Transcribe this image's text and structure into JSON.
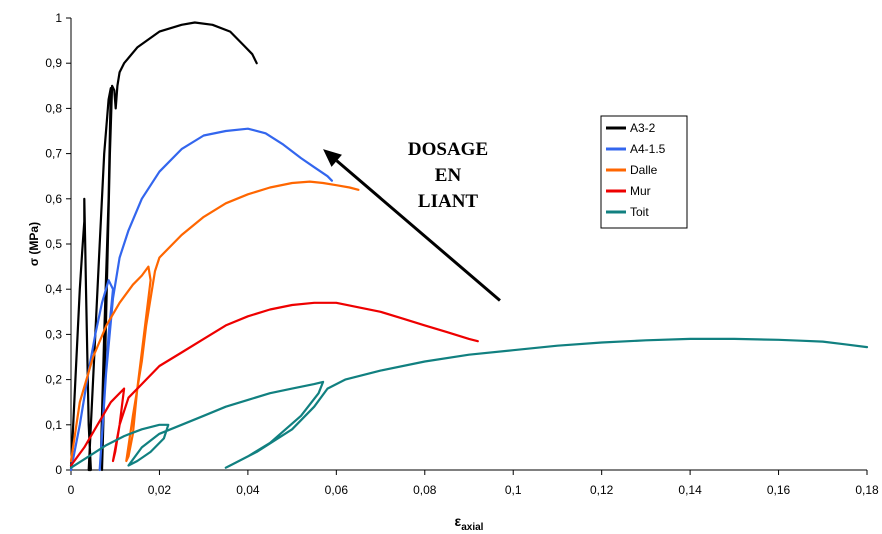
{
  "chart_data": {
    "type": "line",
    "title": "",
    "xlabel": "ε",
    "xlabel_sub": "axial",
    "ylabel": "σ (MPa)",
    "xlim": [
      0,
      0.18
    ],
    "ylim": [
      0,
      1
    ],
    "x_ticks": [
      0,
      0.02,
      0.04,
      0.06,
      0.08,
      0.1,
      0.12,
      0.14,
      0.16,
      0.18
    ],
    "y_ticks": [
      0,
      0.1,
      0.2,
      0.3,
      0.4,
      0.5,
      0.6,
      0.7,
      0.8,
      0.9,
      1
    ],
    "x_tick_labels": [
      "0",
      "0,02",
      "0,04",
      "0,06",
      "0,08",
      "0,1",
      "0,12",
      "0,14",
      "0,16",
      "0,18"
    ],
    "y_tick_labels": [
      "0",
      "0,1",
      "0,2",
      "0,3",
      "0,4",
      "0,5",
      "0,6",
      "0,7",
      "0,8",
      "0,9",
      "1"
    ],
    "grid": false,
    "legend_position": "top-right",
    "annotation": {
      "lines": [
        "DOSAGE",
        "EN",
        "LIANT"
      ],
      "arrow_from": [
        0.097,
        0.375
      ],
      "arrow_to": [
        0.057,
        0.71
      ]
    },
    "series": [
      {
        "name": "A3-2",
        "color": "#000000",
        "x": [
          0,
          0.0005,
          0.001,
          0.0015,
          0.002,
          0.0025,
          0.003,
          0.003,
          0.0032,
          0.0034,
          0.0036,
          0.0038,
          0.004,
          0.0045,
          0.004,
          0.0045,
          0.0055,
          0.0065,
          0.0075,
          0.0085,
          0.009,
          0.0085,
          0.0075,
          0.0068,
          0.007,
          0.0076,
          0.0082,
          0.0088,
          0.0093,
          0.0098,
          0.0101,
          0.0105,
          0.011,
          0.012,
          0.015,
          0.02,
          0.025,
          0.028,
          0.032,
          0.036,
          0.039,
          0.041,
          0.042
        ],
        "y": [
          0,
          0.1,
          0.2,
          0.3,
          0.4,
          0.48,
          0.55,
          0.6,
          0.5,
          0.4,
          0.3,
          0.2,
          0.1,
          0,
          0,
          0.1,
          0.3,
          0.5,
          0.7,
          0.82,
          0.845,
          0.6,
          0.3,
          0.05,
          0,
          0.2,
          0.45,
          0.7,
          0.85,
          0.84,
          0.8,
          0.85,
          0.88,
          0.9,
          0.935,
          0.97,
          0.985,
          0.99,
          0.985,
          0.97,
          0.94,
          0.92,
          0.9
        ]
      },
      {
        "name": "A4-1.5",
        "color": "#3366ee",
        "x": [
          0,
          0.002,
          0.004,
          0.0055,
          0.007,
          0.0085,
          0.0095,
          0.0085,
          0.0075,
          0.0065,
          0.0065,
          0.0078,
          0.0095,
          0.011,
          0.013,
          0.016,
          0.02,
          0.025,
          0.03,
          0.035,
          0.04,
          0.044,
          0.048,
          0.052,
          0.055,
          0.058,
          0.059
        ],
        "y": [
          0,
          0.1,
          0.22,
          0.3,
          0.37,
          0.42,
          0.4,
          0.3,
          0.15,
          0,
          0,
          0.2,
          0.38,
          0.47,
          0.53,
          0.6,
          0.66,
          0.71,
          0.74,
          0.75,
          0.755,
          0.745,
          0.72,
          0.69,
          0.67,
          0.65,
          0.64
        ]
      },
      {
        "name": "Dalle",
        "color": "#ff6600",
        "x": [
          0,
          0.002,
          0.005,
          0.008,
          0.011,
          0.014,
          0.016,
          0.0175,
          0.018,
          0.0165,
          0.015,
          0.014,
          0.013,
          0.0125,
          0.0125,
          0.014,
          0.016,
          0.017,
          0.018,
          0.019,
          0.02,
          0.025,
          0.03,
          0.035,
          0.04,
          0.045,
          0.05,
          0.054,
          0.057,
          0.06,
          0.063,
          0.065
        ],
        "y": [
          0.02,
          0.15,
          0.25,
          0.32,
          0.37,
          0.41,
          0.43,
          0.45,
          0.42,
          0.3,
          0.18,
          0.08,
          0.03,
          0.02,
          0.02,
          0.12,
          0.24,
          0.32,
          0.38,
          0.44,
          0.47,
          0.52,
          0.56,
          0.59,
          0.61,
          0.625,
          0.635,
          0.638,
          0.635,
          0.63,
          0.625,
          0.62
        ]
      },
      {
        "name": "Mur",
        "color": "#ee0000",
        "x": [
          0,
          0.003,
          0.006,
          0.009,
          0.012,
          0.011,
          0.01,
          0.0095,
          0.0095,
          0.011,
          0.013,
          0.016,
          0.02,
          0.025,
          0.03,
          0.035,
          0.04,
          0.045,
          0.05,
          0.055,
          0.06,
          0.065,
          0.07,
          0.075,
          0.08,
          0.085,
          0.09,
          0.092
        ],
        "y": [
          0.01,
          0.05,
          0.1,
          0.15,
          0.18,
          0.1,
          0.04,
          0.02,
          0.02,
          0.1,
          0.16,
          0.19,
          0.23,
          0.26,
          0.29,
          0.32,
          0.34,
          0.355,
          0.365,
          0.37,
          0.37,
          0.36,
          0.35,
          0.335,
          0.32,
          0.305,
          0.29,
          0.285
        ]
      },
      {
        "name": "Toit",
        "color": "#118080",
        "x": [
          0,
          0.004,
          0.008,
          0.012,
          0.016,
          0.02,
          0.022,
          0.021,
          0.018,
          0.015,
          0.013,
          0.013,
          0.016,
          0.02,
          0.025,
          0.03,
          0.035,
          0.04,
          0.045,
          0.05,
          0.055,
          0.057,
          0.056,
          0.052,
          0.045,
          0.04,
          0.036,
          0.035,
          0.035,
          0.042,
          0.05,
          0.055,
          0.058,
          0.062,
          0.066,
          0.07,
          0.08,
          0.09,
          0.1,
          0.11,
          0.12,
          0.13,
          0.14,
          0.15,
          0.16,
          0.165,
          0.17,
          0.175,
          0.18
        ],
        "y": [
          0.005,
          0.03,
          0.055,
          0.075,
          0.09,
          0.1,
          0.1,
          0.07,
          0.04,
          0.02,
          0.01,
          0.01,
          0.05,
          0.08,
          0.1,
          0.12,
          0.14,
          0.155,
          0.17,
          0.18,
          0.19,
          0.195,
          0.17,
          0.12,
          0.06,
          0.03,
          0.01,
          0.005,
          0.005,
          0.04,
          0.09,
          0.14,
          0.18,
          0.2,
          0.21,
          0.22,
          0.24,
          0.255,
          0.265,
          0.275,
          0.282,
          0.287,
          0.29,
          0.29,
          0.288,
          0.286,
          0.284,
          0.278,
          0.272
        ]
      }
    ]
  }
}
